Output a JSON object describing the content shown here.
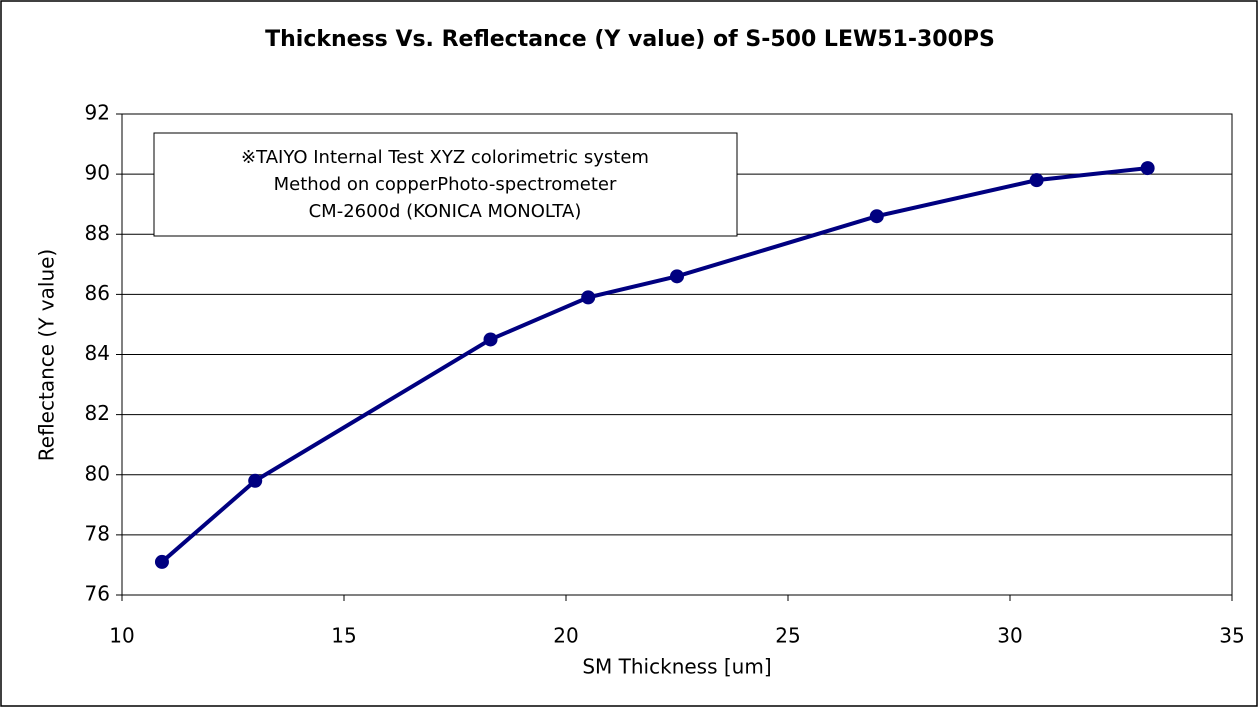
{
  "chart_data": {
    "type": "line",
    "title": "Thickness Vs. Reflectance (Y value) of S-500 LEW51-300PS",
    "x_label": "SM Thickness [um]",
    "y_label": "Reflectance (Y value)",
    "annotation": [
      "※TAIYO Internal Test  XYZ colorimetric system",
      "Method on copperPhoto-spectrometer",
      "CM-2600d (KONICA MONOLTA)"
    ],
    "x": [
      10.9,
      13.0,
      18.3,
      20.5,
      22.5,
      27.0,
      30.6,
      33.1
    ],
    "series": [
      {
        "name": "Reflectance",
        "color": "#000080",
        "values": [
          77.1,
          79.8,
          84.5,
          85.9,
          86.6,
          88.6,
          89.8,
          90.2
        ]
      }
    ],
    "xlim": [
      10,
      35
    ],
    "xticks": [
      10,
      15,
      20,
      25,
      30,
      35
    ],
    "ylim": [
      76,
      92
    ],
    "yticks": [
      76,
      78,
      80,
      82,
      84,
      86,
      88,
      90,
      92
    ],
    "grid": true
  }
}
